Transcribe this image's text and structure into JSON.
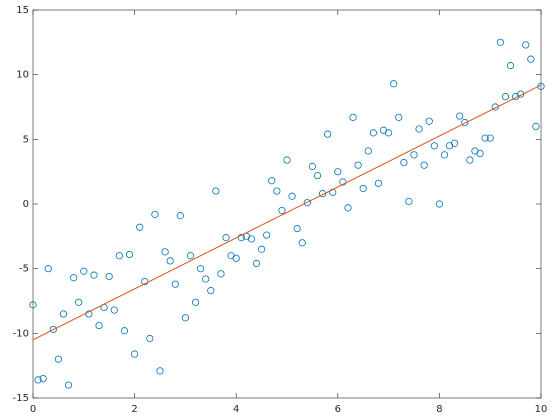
{
  "chart_data": {
    "type": "scatter",
    "xlim": [
      0,
      10
    ],
    "ylim": [
      -15,
      15
    ],
    "xticks": [
      0,
      2,
      4,
      6,
      8,
      10
    ],
    "yticks": [
      -15,
      -10,
      -5,
      0,
      5,
      10,
      15
    ],
    "series": [
      {
        "type": "scatter",
        "color": "#0072bd",
        "x": [
          0,
          0.1,
          0.2,
          0.3,
          0.4,
          0.5,
          0.6,
          0.7,
          0.8,
          0.9,
          1.0,
          1.1,
          1.2,
          1.3,
          1.4,
          1.5,
          1.6,
          1.7,
          1.8,
          1.9,
          2.0,
          2.1,
          2.2,
          2.3,
          2.4,
          2.5,
          2.6,
          2.7,
          2.8,
          2.9,
          3.0,
          3.1,
          3.2,
          3.3,
          3.4,
          3.5,
          3.6,
          3.7,
          3.8,
          3.9,
          4.0,
          4.1,
          4.2,
          4.3,
          4.4,
          4.5,
          4.6,
          4.7,
          4.8,
          4.9,
          5.0,
          5.1,
          5.2,
          5.3,
          5.4,
          5.5,
          5.6,
          5.7,
          5.8,
          5.9,
          6.0,
          6.1,
          6.2,
          6.3,
          6.4,
          6.5,
          6.6,
          6.7,
          6.8,
          6.9,
          7.0,
          7.1,
          7.2,
          7.3,
          7.4,
          7.5,
          7.6,
          7.7,
          7.8,
          7.9,
          8.0,
          8.1,
          8.2,
          8.3,
          8.4,
          8.5,
          8.6,
          8.7,
          8.8,
          8.9,
          9.0,
          9.1,
          9.2,
          9.3,
          9.4,
          9.5,
          9.6,
          9.7,
          9.8,
          9.9,
          10
        ],
        "values": [
          -7.8,
          -13.6,
          -13.5,
          -5,
          -9.7,
          -12,
          -8.5,
          -14,
          -5.7,
          -7.6,
          -5.2,
          -8.5,
          -5.5,
          -9.4,
          -8,
          -5.6,
          -8.2,
          -4,
          -9.8,
          -3.9,
          -11.6,
          -1.8,
          -6,
          -10.4,
          -0.8,
          -12.9,
          -3.7,
          -4.4,
          -6.2,
          -0.9,
          -8.8,
          -4,
          -7.6,
          -5,
          -5.8,
          -6.7,
          1,
          -5.4,
          -2.6,
          -4,
          -4.2,
          -2.6,
          -2.5,
          -2.7,
          -4.6,
          -3.5,
          -2.4,
          1.8,
          1,
          -0.5,
          3.4,
          0.6,
          -1.9,
          -3,
          0.1,
          2.9,
          2.2,
          0.8,
          5.4,
          0.9,
          2.5,
          1.7,
          -0.3,
          6.7,
          3,
          1.2,
          4.1,
          5.5,
          1.6,
          5.7,
          5.5,
          9.3,
          6.7,
          3.2,
          0.2,
          3.8,
          5.8,
          3,
          6.4,
          4.5,
          0,
          3.8,
          4.5,
          4.7,
          6.8,
          6.3,
          3.4,
          4.1,
          3.9,
          5.1,
          5.1,
          7.5,
          12.5,
          8.3,
          10.7,
          8.3,
          8.5,
          12.3,
          11.2,
          6,
          9.1
        ]
      },
      {
        "type": "line",
        "color": "#d95319",
        "x": [
          0,
          10
        ],
        "values": [
          -10.5,
          9.2
        ]
      }
    ]
  }
}
